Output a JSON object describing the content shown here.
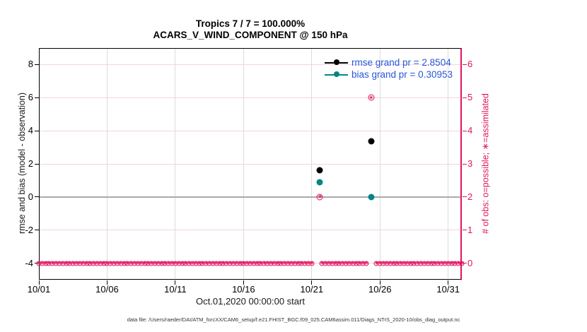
{
  "figure": {
    "footer": "data file: /Users/raeder/DAI/ATM_forcXX/CAM6_setup/f.e21.FHIST_BGC.f09_025.CAM6assim.011/Diags_NTrS_2020-10/obs_diag_output.nc"
  },
  "chart_data": {
    "type": "line",
    "title": "Tropics 7 / 7 = 100.000%",
    "subtitle": "ACARS_V_WIND_COMPONENT @ 150 hPa",
    "xlabel": "Oct.01,2020 00:00:00 start",
    "ylabel_left": "rmse and bias (model - observation)",
    "ylabel_right": "# of obs: o=possible; ∗=assimilated",
    "xlim_days": [
      0,
      31
    ],
    "x_ticks": [
      {
        "day": 0,
        "label": "10/01"
      },
      {
        "day": 5,
        "label": "10/06"
      },
      {
        "day": 10,
        "label": "10/11"
      },
      {
        "day": 15,
        "label": "10/16"
      },
      {
        "day": 20,
        "label": "10/21"
      },
      {
        "day": 25,
        "label": "10/26"
      },
      {
        "day": 30,
        "label": "10/31"
      }
    ],
    "ylim_left": [
      -5,
      9
    ],
    "y_ticks_left": [
      {
        "value": -4,
        "label": "-4"
      },
      {
        "value": -2,
        "label": "-2"
      },
      {
        "value": 0,
        "label": "0"
      },
      {
        "value": 2,
        "label": "2"
      },
      {
        "value": 4,
        "label": "4"
      },
      {
        "value": 6,
        "label": "6"
      },
      {
        "value": 8,
        "label": "8"
      }
    ],
    "ylim_right": [
      -0.5,
      6.5
    ],
    "y_ticks_right": [
      {
        "value": 0,
        "label": "0"
      },
      {
        "value": 1,
        "label": "1"
      },
      {
        "value": 2,
        "label": "2"
      },
      {
        "value": 3,
        "label": "3"
      },
      {
        "value": 4,
        "label": "4"
      },
      {
        "value": 5,
        "label": "5"
      },
      {
        "value": 6,
        "label": "6"
      }
    ],
    "grid": true,
    "legend_position": "top-right-inside",
    "series": [
      {
        "name": "rmse",
        "axis": "left",
        "color": "#000000",
        "legend_label": "rmse grand pr = 2.8504",
        "points": [
          {
            "day": 20.6,
            "value": 1.6
          },
          {
            "day": 24.35,
            "value": 3.35
          }
        ]
      },
      {
        "name": "bias",
        "axis": "left",
        "color": "#068585",
        "legend_label": "bias grand pr = 0.30953",
        "points": [
          {
            "day": 20.6,
            "value": 0.9
          },
          {
            "day": 24.35,
            "value": 0.0
          }
        ]
      },
      {
        "name": "obs-count",
        "axis": "right",
        "color": "#e0145f",
        "points": [
          {
            "day": 20.6,
            "value": 2
          },
          {
            "day": 24.35,
            "value": 5
          }
        ],
        "zero_marker_run": {
          "start_day": 0,
          "end_day": 31,
          "step_days": 0.25,
          "gap_day_ranges": [
            [
              20.2,
              20.7
            ],
            [
              24.1,
              24.7
            ]
          ]
        }
      }
    ],
    "colors": {
      "grid_horizontal": "#f5d3de",
      "grid_vertical": "#dcdcdc",
      "zero_line": "#aaaaaa",
      "right_axis": "#e0145f",
      "legend_text": "#2657d9",
      "axis": "#000000"
    }
  }
}
